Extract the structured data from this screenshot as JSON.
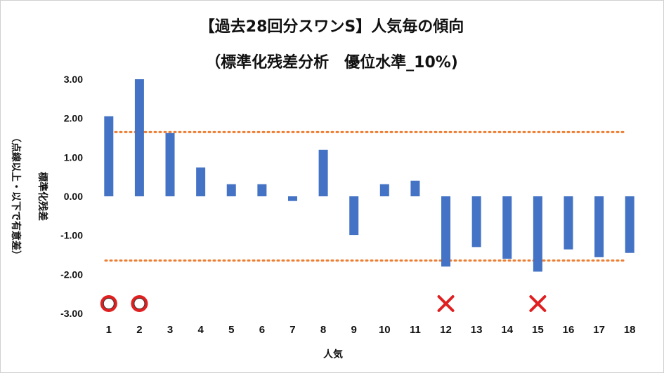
{
  "chart_data": {
    "type": "bar",
    "title_line1": "【過去28回分スワンS】人気毎の傾向",
    "title_line2": "（標準化残差分析　優位水準_10%)",
    "xlabel": "人気",
    "ylabel_main": "標準化残差",
    "ylabel_sub": "（点線以上・以下で有意差）",
    "categories": [
      "1",
      "2",
      "3",
      "4",
      "5",
      "6",
      "7",
      "8",
      "9",
      "10",
      "11",
      "12",
      "13",
      "14",
      "15",
      "16",
      "17",
      "18"
    ],
    "values": [
      2.05,
      3.0,
      1.62,
      0.74,
      0.31,
      0.31,
      -0.12,
      1.19,
      -0.99,
      0.31,
      0.4,
      -1.8,
      -1.3,
      -1.6,
      -1.93,
      -1.36,
      -1.56,
      -1.45
    ],
    "ylim": [
      -3.0,
      3.0
    ],
    "yticks": [
      "3.00",
      "2.00",
      "1.00",
      "0.00",
      "-1.00",
      "-2.00",
      "-3.00"
    ],
    "threshold_upper": 1.645,
    "threshold_lower": -1.645,
    "bar_color": "#4472c4",
    "threshold_color": "#ed7d31",
    "markers": [
      {
        "category": "1",
        "symbol": "circle"
      },
      {
        "category": "2",
        "symbol": "circle"
      },
      {
        "category": "12",
        "symbol": "cross"
      },
      {
        "category": "15",
        "symbol": "cross"
      }
    ],
    "marker_color": "#e02020",
    "grid": false
  }
}
